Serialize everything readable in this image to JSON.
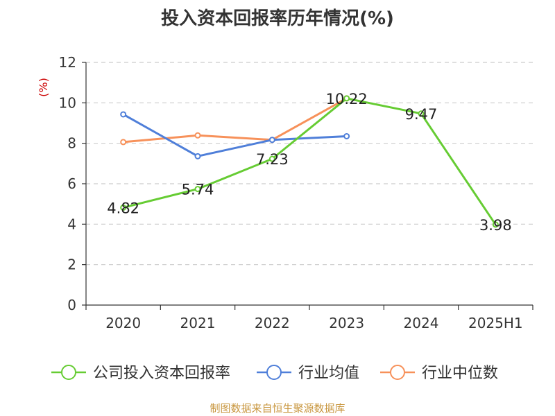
{
  "chart_data": {
    "type": "line",
    "title": "投入资本回报率历年情况(%)",
    "ylabel": "(%)",
    "xlabel": "",
    "categories": [
      "2020",
      "2021",
      "2022",
      "2023",
      "2024",
      "2025H1"
    ],
    "yticks": [
      "0",
      "2",
      "4",
      "6",
      "8",
      "10",
      "12"
    ],
    "ylim": [
      0,
      12
    ],
    "grid": true,
    "legend_position": "bottom",
    "series": [
      {
        "name": "公司投入资本回报率",
        "color": "#66cc33",
        "values": [
          4.82,
          5.74,
          7.23,
          10.22,
          9.47,
          3.98
        ],
        "labels": [
          "4.82",
          "5.74",
          "7.23",
          "10.22",
          "9.47",
          "3.98"
        ]
      },
      {
        "name": "行业均值",
        "color": "#4f7fd9",
        "values": [
          9.43,
          7.36,
          8.17,
          8.35,
          null,
          null
        ]
      },
      {
        "name": "行业中位数",
        "color": "#f7915a",
        "values": [
          8.06,
          8.39,
          8.17,
          10.22,
          null,
          null
        ]
      }
    ]
  },
  "footer": {
    "source": "制图数据来自恒生聚源数据库"
  }
}
